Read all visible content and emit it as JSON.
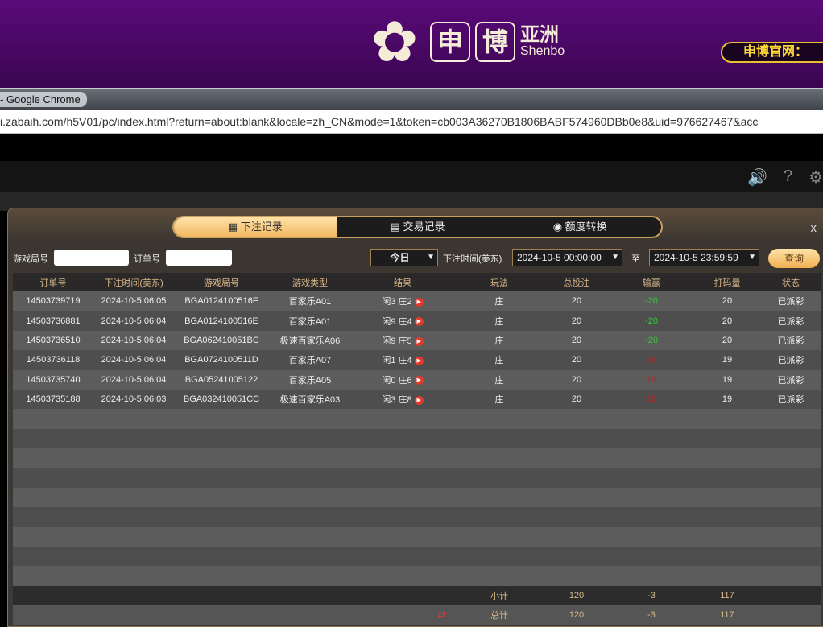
{
  "banner": {
    "logo_char1": "申",
    "logo_char2": "博",
    "logo_cn": "亚洲",
    "logo_en": "Shenbo",
    "official": "申博官网："
  },
  "browser": {
    "title": "- Google Chrome",
    "url": "i.zabaih.com/h5V01/pc/index.html?return=about:blank&locale=zh_CN&mode=1&token=cb003A36270B1806BABF574960DBb0e8&uid=976627467&acc"
  },
  "modal": {
    "tabs": [
      {
        "label": "下注记录",
        "icon": "calendar-icon",
        "active": true
      },
      {
        "label": "交易记录",
        "icon": "clipboard-icon",
        "active": false
      },
      {
        "label": "额度转换",
        "icon": "coins-icon",
        "active": false
      }
    ],
    "close": "x",
    "filter": {
      "round_label": "游戏局号",
      "round_value": "",
      "order_label": "订单号",
      "order_value": "",
      "period": "今日",
      "time_label": "下注时间(美东)",
      "start": "2024-10-5 00:00:00",
      "to": "至",
      "end": "2024-10-5 23:59:59",
      "query": "查询"
    },
    "columns": [
      "订单号",
      "下注时间(美东)",
      "游戏局号",
      "游戏类型",
      "结果",
      "玩法",
      "总投注",
      "输赢",
      "打码量",
      "状态"
    ],
    "rows": [
      {
        "order": "14503739719",
        "time": "2024-10-5 06:05",
        "round": "BGA0124100516F",
        "game": "百家乐A01",
        "result": "闲3 庄2",
        "play": "庄",
        "bet": "20",
        "win": "-20",
        "valid": "20",
        "status": "已派彩"
      },
      {
        "order": "14503736881",
        "time": "2024-10-5 06:04",
        "round": "BGA0124100516E",
        "game": "百家乐A01",
        "result": "闲9 庄4",
        "play": "庄",
        "bet": "20",
        "win": "-20",
        "valid": "20",
        "status": "已派彩"
      },
      {
        "order": "14503736510",
        "time": "2024-10-5 06:04",
        "round": "BGA062410051BC",
        "game": "极速百家乐A06",
        "result": "闲9 庄5",
        "play": "庄",
        "bet": "20",
        "win": "-20",
        "valid": "20",
        "status": "已派彩"
      },
      {
        "order": "14503736118",
        "time": "2024-10-5 06:04",
        "round": "BGA0724100511D",
        "game": "百家乐A07",
        "result": "闲1 庄4",
        "play": "庄",
        "bet": "20",
        "win": "19",
        "valid": "19",
        "status": "已派彩"
      },
      {
        "order": "14503735740",
        "time": "2024-10-5 06:04",
        "round": "BGA05241005122",
        "game": "百家乐A05",
        "result": "闲0 庄6",
        "play": "庄",
        "bet": "20",
        "win": "19",
        "valid": "19",
        "status": "已派彩"
      },
      {
        "order": "14503735188",
        "time": "2024-10-5 06:03",
        "round": "BGA032410051CC",
        "game": "极速百家乐A03",
        "result": "闲3 庄8",
        "play": "庄",
        "bet": "20",
        "win": "19",
        "valid": "19",
        "status": "已派彩"
      }
    ],
    "subtotal": {
      "label": "小计",
      "bet": "120",
      "win": "-3",
      "valid": "117"
    },
    "total": {
      "label": "总计",
      "bet": "120",
      "win": "-3",
      "valid": "117"
    },
    "colors": {
      "win_negative": "#2ed02e",
      "win_positive": "#c82020",
      "accent": "#f2b860"
    }
  }
}
